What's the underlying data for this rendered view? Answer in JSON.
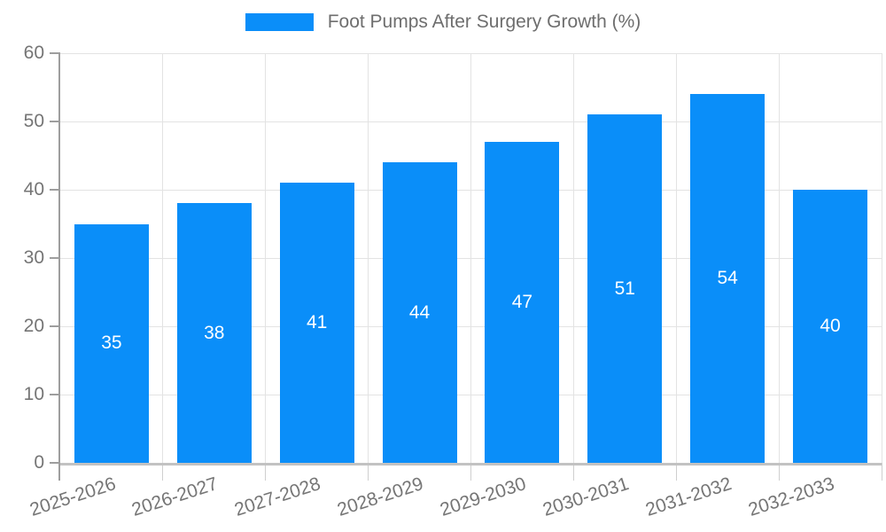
{
  "chart_data": {
    "type": "bar",
    "legend": "Foot Pumps After Surgery Growth (%)",
    "legend_position": "top",
    "categories": [
      "2025-2026",
      "2026-2027",
      "2027-2028",
      "2028-2029",
      "2029-2030",
      "2030-2031",
      "2031-2032",
      "2032-2033"
    ],
    "values": [
      35,
      38,
      41,
      44,
      47,
      51,
      54,
      40
    ],
    "xlabel": "",
    "ylabel": "",
    "ylim": [
      0,
      60
    ],
    "yticks": [
      0,
      10,
      20,
      30,
      40,
      50,
      60
    ],
    "grid": true,
    "bar_color": "#0a8ef9",
    "value_label_color": "#ffffff",
    "axis_label_color": "#757575"
  }
}
